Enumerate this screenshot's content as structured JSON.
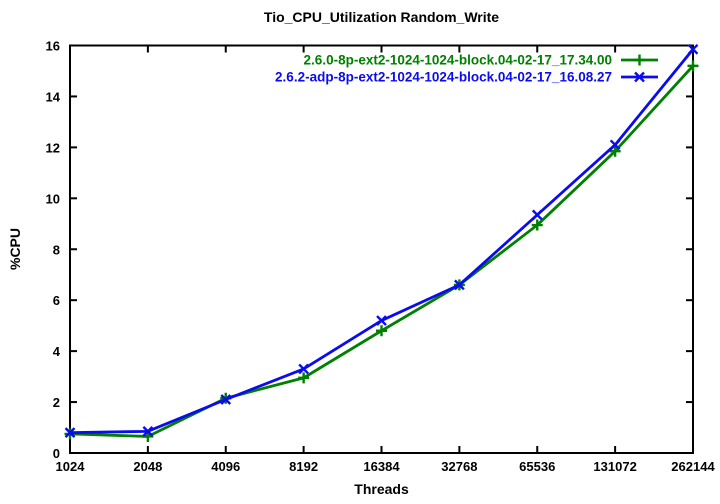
{
  "chart_data": {
    "type": "line",
    "title": "Tio_CPU_Utilization Random_Write",
    "xlabel": "Threads",
    "ylabel": "%CPU",
    "x_scale": "log2",
    "categories": [
      "1024",
      "2048",
      "4096",
      "8192",
      "16384",
      "32768",
      "65536",
      "131072",
      "262144"
    ],
    "yticks": [
      0,
      2,
      4,
      6,
      8,
      10,
      12,
      14,
      16
    ],
    "ylim": [
      0,
      16
    ],
    "grid": false,
    "legend_position": "top-right-inside",
    "border_color": "#000000",
    "series": [
      {
        "name": "2.6.0-8p-ext2-1024-1024-block.04-02-17_17.34.00",
        "color": "#008000",
        "marker": "plus",
        "values": [
          0.75,
          0.65,
          2.15,
          2.95,
          4.8,
          6.6,
          8.95,
          11.85,
          15.2
        ]
      },
      {
        "name": "2.6.2-adp-8p-ext2-1024-1024-block.04-02-17_16.08.27",
        "color": "#0b0bf0",
        "marker": "cross",
        "values": [
          0.8,
          0.85,
          2.1,
          3.3,
          5.2,
          6.6,
          9.35,
          12.1,
          15.85
        ]
      }
    ]
  }
}
